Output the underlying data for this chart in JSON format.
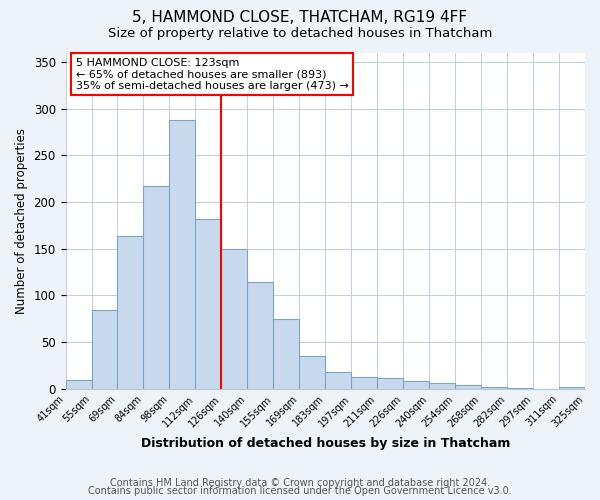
{
  "title": "5, HAMMOND CLOSE, THATCHAM, RG19 4FF",
  "subtitle": "Size of property relative to detached houses in Thatcham",
  "xlabel": "Distribution of detached houses by size in Thatcham",
  "ylabel": "Number of detached properties",
  "bar_labels": [
    "41sqm",
    "55sqm",
    "69sqm",
    "84sqm",
    "98sqm",
    "112sqm",
    "126sqm",
    "140sqm",
    "155sqm",
    "169sqm",
    "183sqm",
    "197sqm",
    "211sqm",
    "226sqm",
    "240sqm",
    "254sqm",
    "268sqm",
    "282sqm",
    "297sqm",
    "311sqm",
    "325sqm"
  ],
  "bar_values": [
    10,
    84,
    164,
    217,
    288,
    182,
    150,
    114,
    75,
    35,
    18,
    13,
    12,
    8,
    6,
    4,
    2,
    1,
    0,
    2
  ],
  "bar_color": "#c9d9ed",
  "bar_edge_color": "#7ca4c8",
  "vline_x": 6.0,
  "vline_color": "red",
  "annotation_title": "5 HAMMOND CLOSE: 123sqm",
  "annotation_line1": "← 65% of detached houses are smaller (893)",
  "annotation_line2": "35% of semi-detached houses are larger (473) →",
  "annotation_box_color": "white",
  "annotation_box_edge": "red",
  "ylim": [
    0,
    360
  ],
  "yticks": [
    0,
    50,
    100,
    150,
    200,
    250,
    300,
    350
  ],
  "footer1": "Contains HM Land Registry data © Crown copyright and database right 2024.",
  "footer2": "Contains public sector information licensed under the Open Government Licence v3.0.",
  "background_color": "#eef3f9",
  "plot_background": "white",
  "title_fontsize": 11,
  "subtitle_fontsize": 9.5,
  "footer_fontsize": 7
}
